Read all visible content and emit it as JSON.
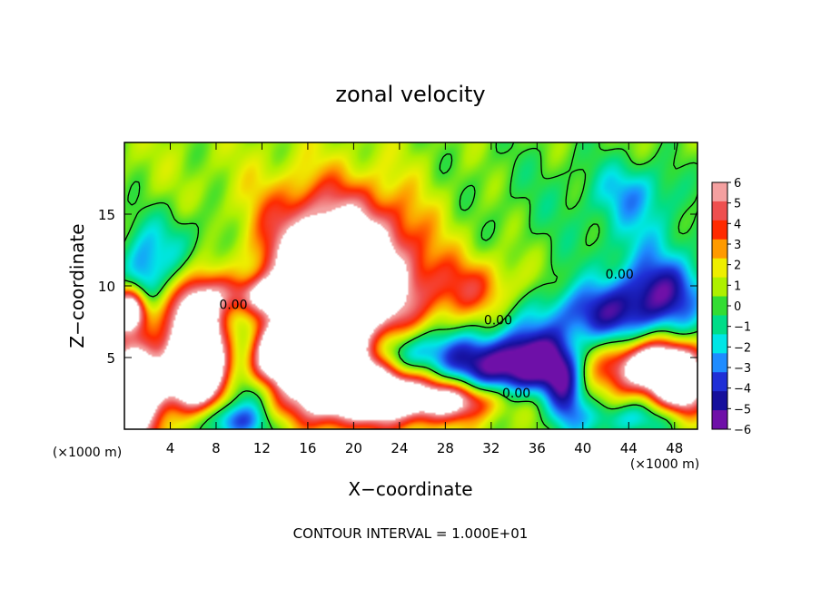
{
  "chart_data": {
    "type": "heatmap",
    "title": "zonal velocity",
    "xlabel": "X−coordinate",
    "ylabel": "Z−coordinate",
    "x_unit_label": "(×1000 m)",
    "z_unit_label": "(×1000 m)",
    "footer": "CONTOUR INTERVAL = 1.000E+01",
    "xlim": [
      0,
      50
    ],
    "ylim": [
      0,
      20
    ],
    "x_ticks": [
      4,
      8,
      12,
      16,
      20,
      24,
      28,
      32,
      36,
      40,
      44,
      48
    ],
    "y_ticks": [
      5,
      10,
      15
    ],
    "colorbar": {
      "min": -6,
      "max": 6,
      "ticks": [
        6,
        5,
        4,
        3,
        2,
        1,
        0,
        -1,
        -2,
        -3,
        -4,
        -5,
        -6
      ],
      "tick_labels": [
        "6",
        "5",
        "4",
        "3",
        "2",
        "1",
        "0",
        "−1",
        "−2",
        "−3",
        "−4",
        "−5",
        "−6"
      ],
      "colors": [
        "#f4a0a0",
        "#ee4f4f",
        "#ff2a00",
        "#ff9a00",
        "#eeee00",
        "#aef000",
        "#33dd33",
        "#00dd88",
        "#00e6e6",
        "#1e8cff",
        "#1f2fd6",
        "#16109c",
        "#6f10a8"
      ]
    },
    "contour_labels": [
      {
        "x": 9.5,
        "z": 8.4,
        "text": "0.00"
      },
      {
        "x": 32.6,
        "z": 7.3,
        "text": "0.00"
      },
      {
        "x": 43.2,
        "z": 10.5,
        "text": "0.00"
      },
      {
        "x": 34.2,
        "z": 2.2,
        "text": "0.00"
      }
    ],
    "features": [
      {
        "x": 19,
        "z": 10.0,
        "sx": 4.5,
        "sz": 3.2,
        "v": 11
      },
      {
        "x": 18,
        "z": 14.5,
        "sx": 5,
        "sz": 2.5,
        "v": 3
      },
      {
        "x": 14,
        "z": 9.3,
        "sx": 4,
        "sz": 0.9,
        "v": 6
      },
      {
        "x": 6.3,
        "z": 6.2,
        "sx": 1.6,
        "sz": 2.8,
        "v": 12
      },
      {
        "x": 4.5,
        "z": 3.5,
        "sx": 3.5,
        "sz": 1.5,
        "v": 5
      },
      {
        "x": 0.8,
        "z": 2.5,
        "sx": 1.6,
        "sz": 3.2,
        "v": 8
      },
      {
        "x": 0.5,
        "z": 8.3,
        "sx": 1.1,
        "sz": 1.1,
        "v": 10
      },
      {
        "x": 16,
        "z": 5.2,
        "sx": 3.5,
        "sz": 1.6,
        "v": 12
      },
      {
        "x": 21,
        "z": 2.6,
        "sx": 5,
        "sz": 1.5,
        "v": 12
      },
      {
        "x": 29,
        "z": 2.0,
        "sx": 3,
        "sz": 0.9,
        "v": 5
      },
      {
        "x": 30.5,
        "z": 9.8,
        "sx": 3,
        "sz": 1.5,
        "v": 3
      },
      {
        "x": 40,
        "z": 4.5,
        "sx": 2,
        "sz": 1.5,
        "v": 3
      },
      {
        "x": 46.5,
        "z": 4.3,
        "sx": 3,
        "sz": 1.3,
        "v": 11
      },
      {
        "x": 48.5,
        "z": 2.5,
        "sx": 1.5,
        "sz": 1.2,
        "v": 6
      },
      {
        "x": 4.5,
        "z": 12.5,
        "sx": 4,
        "sz": 2,
        "v": -2.5
      },
      {
        "x": 1.5,
        "z": 9.5,
        "sx": 1.2,
        "sz": 2.2,
        "v": -4
      },
      {
        "x": 10.5,
        "z": 6.0,
        "sx": 1.2,
        "sz": 2.5,
        "v": -4
      },
      {
        "x": 13,
        "z": 2.8,
        "sx": 3,
        "sz": 1,
        "v": -3
      },
      {
        "x": 9.5,
        "z": 0.6,
        "sx": 2.2,
        "sz": 1,
        "v": -5
      },
      {
        "x": 24,
        "z": 5.5,
        "sx": 3,
        "sz": 1.2,
        "v": -3
      },
      {
        "x": 31,
        "z": 4.3,
        "sx": 7,
        "sz": 1.6,
        "v": -6
      },
      {
        "x": 36,
        "z": 4.8,
        "sx": 3,
        "sz": 1.5,
        "v": -4
      },
      {
        "x": 42.5,
        "z": 8.0,
        "sx": 5,
        "sz": 1.5,
        "v": -5
      },
      {
        "x": 47,
        "z": 10.0,
        "sx": 3,
        "sz": 1.5,
        "v": -4
      },
      {
        "x": 44.5,
        "z": 16.5,
        "sx": 2.5,
        "sz": 1.5,
        "v": -2.5
      },
      {
        "x": 46,
        "z": 13.0,
        "sx": 3,
        "sz": 1.8,
        "v": -1.5
      },
      {
        "x": 38.5,
        "z": 2.3,
        "sx": 1.2,
        "sz": 2.2,
        "v": -4
      },
      {
        "x": 44,
        "z": 0.7,
        "sx": 3,
        "sz": 0.9,
        "v": -3
      },
      {
        "x": 40,
        "z": 14.0,
        "sx": 7,
        "sz": 4,
        "v": -0.8
      },
      {
        "x": 36,
        "z": 17.5,
        "sx": 8,
        "sz": 3,
        "v": -0.5
      }
    ],
    "grid": false
  }
}
